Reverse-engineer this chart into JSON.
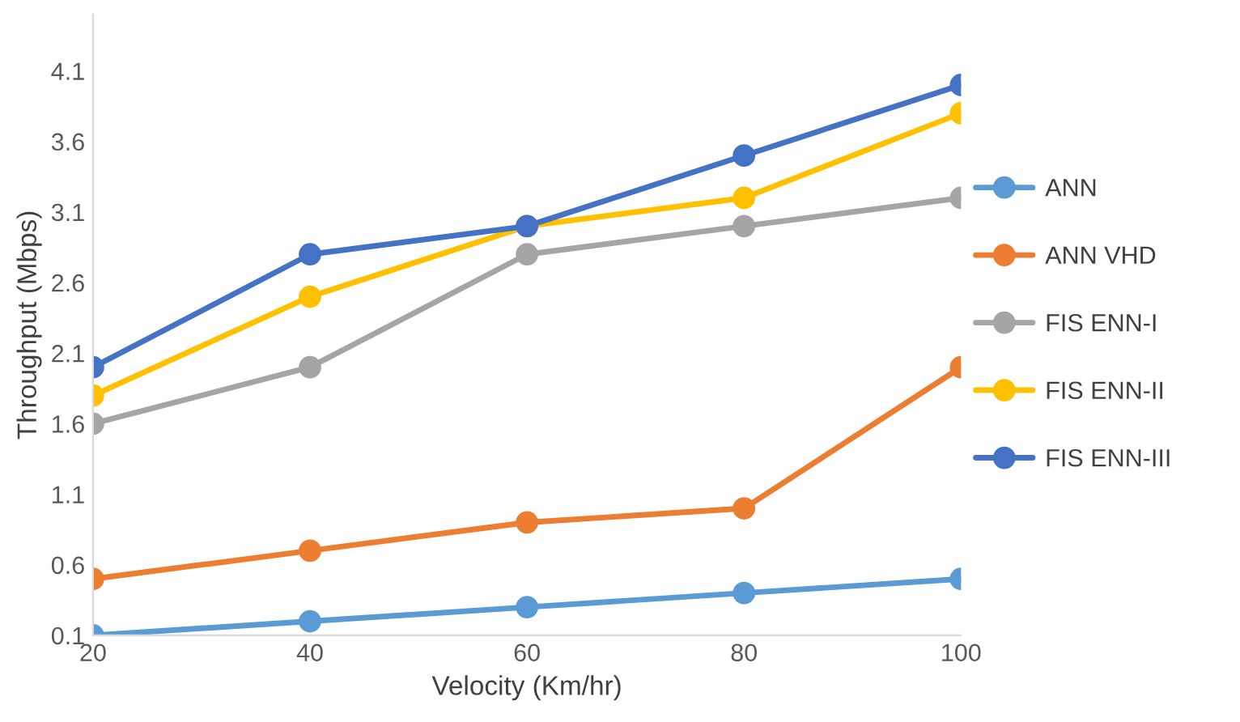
{
  "chart_data": {
    "type": "line",
    "xlabel": "Velocity (Km/hr)",
    "ylabel": "Throughput (Mbps)",
    "x": [
      20,
      40,
      60,
      80,
      100
    ],
    "xlim": [
      20,
      100
    ],
    "xticks": [
      20,
      40,
      60,
      80,
      100
    ],
    "ylim": [
      0.1,
      4.5
    ],
    "yticks": [
      0.1,
      0.6,
      1.1,
      1.6,
      2.1,
      2.6,
      3.1,
      3.6,
      4.1
    ],
    "grid": false,
    "legend": "right",
    "marker": "circle",
    "line_style": "solid",
    "series": [
      {
        "name": "ANN",
        "color": "#5b9bd5",
        "values": [
          0.1,
          0.2,
          0.3,
          0.4,
          0.5
        ]
      },
      {
        "name": "ANN VHD",
        "color": "#ed7d31",
        "values": [
          0.5,
          0.7,
          0.9,
          1.0,
          2.0
        ]
      },
      {
        "name": "FIS ENN-I",
        "color": "#a5a5a5",
        "values": [
          1.6,
          2.0,
          2.8,
          3.0,
          3.2
        ]
      },
      {
        "name": "FIS ENN-II",
        "color": "#ffc000",
        "values": [
          1.8,
          2.5,
          3.0,
          3.2,
          3.8
        ]
      },
      {
        "name": "FIS ENN-III",
        "color": "#4472c4",
        "values": [
          2.0,
          2.8,
          3.0,
          3.5,
          4.0
        ]
      }
    ]
  }
}
